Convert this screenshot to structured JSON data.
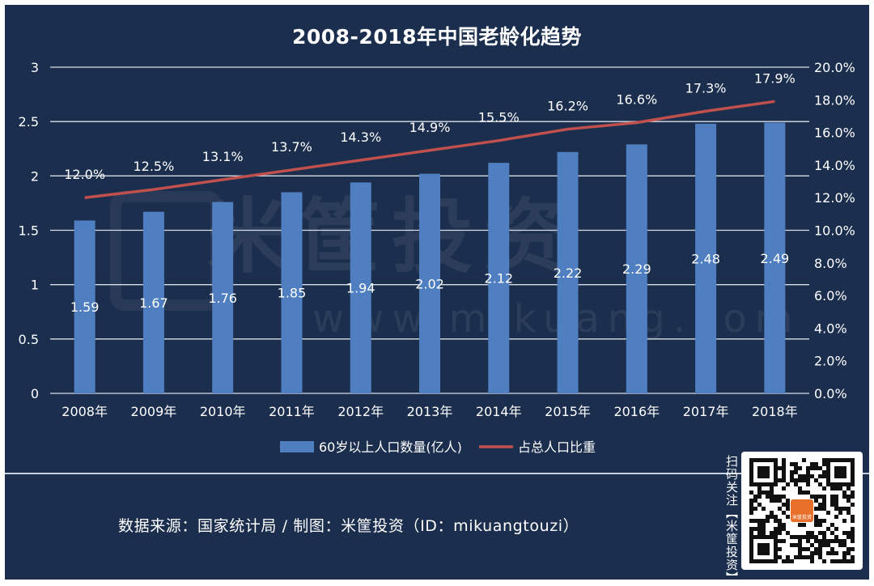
{
  "chart_data": {
    "type": "bar",
    "title": "2008-2018年中国老龄化趋势",
    "categories": [
      "2008年",
      "2009年",
      "2010年",
      "2011年",
      "2012年",
      "2013年",
      "2014年",
      "2015年",
      "2016年",
      "2017年",
      "2018年"
    ],
    "series": [
      {
        "name": "60岁以上人口数量(亿人)",
        "type": "bar",
        "axis": "left",
        "color": "#4f7fc0",
        "values": [
          1.59,
          1.67,
          1.76,
          1.85,
          1.94,
          2.02,
          2.12,
          2.22,
          2.29,
          2.48,
          2.49
        ]
      },
      {
        "name": "占总人口比重",
        "type": "line",
        "axis": "right",
        "color": "#c0504d",
        "values": [
          12.0,
          12.5,
          13.1,
          13.7,
          14.3,
          14.9,
          15.5,
          16.2,
          16.6,
          17.3,
          17.9
        ]
      }
    ],
    "left_axis": {
      "ylim": [
        0,
        3
      ],
      "ticks": [
        0,
        0.5,
        1,
        1.5,
        2,
        2.5,
        3
      ],
      "tick_labels": [
        "0",
        "0.5",
        "1",
        "1.5",
        "2",
        "2.5",
        "3"
      ]
    },
    "right_axis": {
      "ylim": [
        0,
        20
      ],
      "ticks": [
        0,
        2,
        4,
        6,
        8,
        10,
        12,
        14,
        16,
        18,
        20
      ],
      "tick_labels": [
        "0.0%",
        "2.0%",
        "4.0%",
        "6.0%",
        "8.0%",
        "10.0%",
        "12.0%",
        "14.0%",
        "16.0%",
        "18.0%",
        "20.0%"
      ]
    },
    "bar_labels": [
      "1.59",
      "1.67",
      "1.76",
      "1.85",
      "1.94",
      "2.02",
      "2.12",
      "2.22",
      "2.29",
      "2.48",
      "2.49"
    ],
    "line_labels": [
      "12.0%",
      "12.5%",
      "13.1%",
      "13.7%",
      "14.3%",
      "14.9%",
      "15.5%",
      "16.2%",
      "16.6%",
      "17.3%",
      "17.9%"
    ],
    "grid": true,
    "legend_position": "bottom-center"
  },
  "footer": {
    "source_text": "数据来源：国家统计局 / 制图：米筐投资（ID：mikuangtouzi）",
    "scan_text": "扫码关注【米筐投资】"
  },
  "watermark": {
    "brand": "米筐投资",
    "url": "www.mikuang.com",
    "qr_logo_text": "米筐投资"
  }
}
